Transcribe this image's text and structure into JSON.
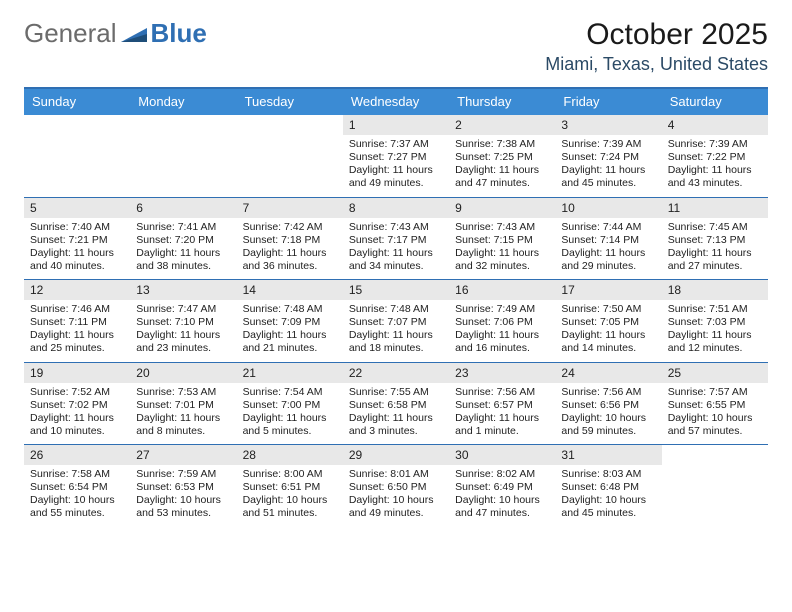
{
  "logo": {
    "general": "General",
    "blue": "Blue"
  },
  "title": "October 2025",
  "location": "Miami, Texas, United States",
  "colors": {
    "header_bg": "#3b8bd4",
    "border": "#2f6fb3",
    "daynum_bg": "#e8e8e8",
    "text": "#222222",
    "logo_gray": "#6b6b6b",
    "logo_blue": "#2f6fb3",
    "location_color": "#2b4a66"
  },
  "day_names": [
    "Sunday",
    "Monday",
    "Tuesday",
    "Wednesday",
    "Thursday",
    "Friday",
    "Saturday"
  ],
  "weeks": [
    [
      null,
      null,
      null,
      {
        "n": "1",
        "sr": "7:37 AM",
        "ss": "7:27 PM",
        "dl": "11 hours and 49 minutes."
      },
      {
        "n": "2",
        "sr": "7:38 AM",
        "ss": "7:25 PM",
        "dl": "11 hours and 47 minutes."
      },
      {
        "n": "3",
        "sr": "7:39 AM",
        "ss": "7:24 PM",
        "dl": "11 hours and 45 minutes."
      },
      {
        "n": "4",
        "sr": "7:39 AM",
        "ss": "7:22 PM",
        "dl": "11 hours and 43 minutes."
      }
    ],
    [
      {
        "n": "5",
        "sr": "7:40 AM",
        "ss": "7:21 PM",
        "dl": "11 hours and 40 minutes."
      },
      {
        "n": "6",
        "sr": "7:41 AM",
        "ss": "7:20 PM",
        "dl": "11 hours and 38 minutes."
      },
      {
        "n": "7",
        "sr": "7:42 AM",
        "ss": "7:18 PM",
        "dl": "11 hours and 36 minutes."
      },
      {
        "n": "8",
        "sr": "7:43 AM",
        "ss": "7:17 PM",
        "dl": "11 hours and 34 minutes."
      },
      {
        "n": "9",
        "sr": "7:43 AM",
        "ss": "7:15 PM",
        "dl": "11 hours and 32 minutes."
      },
      {
        "n": "10",
        "sr": "7:44 AM",
        "ss": "7:14 PM",
        "dl": "11 hours and 29 minutes."
      },
      {
        "n": "11",
        "sr": "7:45 AM",
        "ss": "7:13 PM",
        "dl": "11 hours and 27 minutes."
      }
    ],
    [
      {
        "n": "12",
        "sr": "7:46 AM",
        "ss": "7:11 PM",
        "dl": "11 hours and 25 minutes."
      },
      {
        "n": "13",
        "sr": "7:47 AM",
        "ss": "7:10 PM",
        "dl": "11 hours and 23 minutes."
      },
      {
        "n": "14",
        "sr": "7:48 AM",
        "ss": "7:09 PM",
        "dl": "11 hours and 21 minutes."
      },
      {
        "n": "15",
        "sr": "7:48 AM",
        "ss": "7:07 PM",
        "dl": "11 hours and 18 minutes."
      },
      {
        "n": "16",
        "sr": "7:49 AM",
        "ss": "7:06 PM",
        "dl": "11 hours and 16 minutes."
      },
      {
        "n": "17",
        "sr": "7:50 AM",
        "ss": "7:05 PM",
        "dl": "11 hours and 14 minutes."
      },
      {
        "n": "18",
        "sr": "7:51 AM",
        "ss": "7:03 PM",
        "dl": "11 hours and 12 minutes."
      }
    ],
    [
      {
        "n": "19",
        "sr": "7:52 AM",
        "ss": "7:02 PM",
        "dl": "11 hours and 10 minutes."
      },
      {
        "n": "20",
        "sr": "7:53 AM",
        "ss": "7:01 PM",
        "dl": "11 hours and 8 minutes."
      },
      {
        "n": "21",
        "sr": "7:54 AM",
        "ss": "7:00 PM",
        "dl": "11 hours and 5 minutes."
      },
      {
        "n": "22",
        "sr": "7:55 AM",
        "ss": "6:58 PM",
        "dl": "11 hours and 3 minutes."
      },
      {
        "n": "23",
        "sr": "7:56 AM",
        "ss": "6:57 PM",
        "dl": "11 hours and 1 minute."
      },
      {
        "n": "24",
        "sr": "7:56 AM",
        "ss": "6:56 PM",
        "dl": "10 hours and 59 minutes."
      },
      {
        "n": "25",
        "sr": "7:57 AM",
        "ss": "6:55 PM",
        "dl": "10 hours and 57 minutes."
      }
    ],
    [
      {
        "n": "26",
        "sr": "7:58 AM",
        "ss": "6:54 PM",
        "dl": "10 hours and 55 minutes."
      },
      {
        "n": "27",
        "sr": "7:59 AM",
        "ss": "6:53 PM",
        "dl": "10 hours and 53 minutes."
      },
      {
        "n": "28",
        "sr": "8:00 AM",
        "ss": "6:51 PM",
        "dl": "10 hours and 51 minutes."
      },
      {
        "n": "29",
        "sr": "8:01 AM",
        "ss": "6:50 PM",
        "dl": "10 hours and 49 minutes."
      },
      {
        "n": "30",
        "sr": "8:02 AM",
        "ss": "6:49 PM",
        "dl": "10 hours and 47 minutes."
      },
      {
        "n": "31",
        "sr": "8:03 AM",
        "ss": "6:48 PM",
        "dl": "10 hours and 45 minutes."
      },
      null
    ]
  ],
  "labels": {
    "sunrise": "Sunrise:",
    "sunset": "Sunset:",
    "daylight": "Daylight:"
  }
}
